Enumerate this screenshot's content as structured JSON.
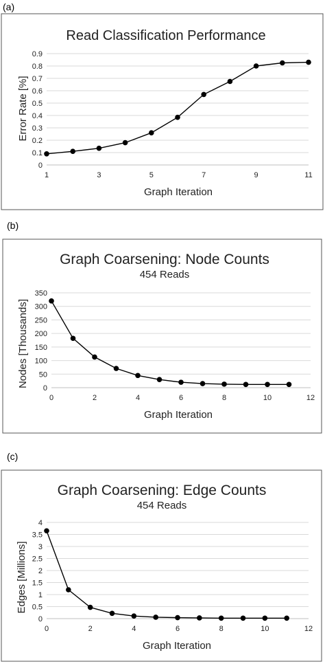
{
  "panels": [
    {
      "tag": "(a)"
    },
    {
      "tag": "(b)"
    },
    {
      "tag": "(c)"
    }
  ],
  "chart_data": [
    {
      "type": "line",
      "title": "Read Classification Performance",
      "subtitle": "",
      "xlabel": "Graph Iteration",
      "ylabel": "Error Rate [%]",
      "xlim": [
        1,
        11
      ],
      "ylim": [
        0,
        0.9
      ],
      "xticks": [
        1,
        3,
        5,
        7,
        9,
        11
      ],
      "yticks": [
        0,
        0.1,
        0.2,
        0.3,
        0.4,
        0.5,
        0.6,
        0.7,
        0.8,
        0.9
      ],
      "grid": "horizontal",
      "legend": "none",
      "series": [
        {
          "x": [
            1,
            2,
            3,
            4,
            5,
            6,
            7,
            8,
            9,
            10,
            11
          ],
          "values": [
            0.09,
            0.11,
            0.135,
            0.18,
            0.26,
            0.385,
            0.57,
            0.675,
            0.8,
            0.825,
            0.83
          ]
        }
      ]
    },
    {
      "type": "scatter",
      "title": "Graph Coarsening: Node Counts",
      "subtitle": "454 Reads",
      "xlabel": "Graph Iteration",
      "ylabel": "Nodes [Thousands]",
      "xlim": [
        0,
        12
      ],
      "ylim": [
        0,
        350
      ],
      "xticks": [
        0,
        2,
        4,
        6,
        8,
        10,
        12
      ],
      "yticks": [
        0,
        50,
        100,
        150,
        200,
        250,
        300,
        350
      ],
      "grid": "horizontal",
      "legend": "none",
      "series": [
        {
          "x": [
            0,
            1,
            2,
            3,
            4,
            5,
            6,
            7,
            8,
            9,
            10,
            11
          ],
          "values": [
            320,
            182,
            113,
            71,
            45,
            30,
            20,
            15,
            13,
            12,
            12,
            12
          ]
        }
      ]
    },
    {
      "type": "scatter",
      "title": "Graph Coarsening: Edge Counts",
      "subtitle": "454 Reads",
      "xlabel": "Graph Iteration",
      "ylabel": "Edges [Millions]",
      "xlim": [
        0,
        12
      ],
      "ylim": [
        0,
        4
      ],
      "xticks": [
        0,
        2,
        4,
        6,
        8,
        10,
        12
      ],
      "yticks": [
        0,
        0.5,
        1,
        1.5,
        2,
        2.5,
        3,
        3.5,
        4
      ],
      "grid": "horizontal",
      "legend": "none",
      "series": [
        {
          "x": [
            0,
            1,
            2,
            3,
            4,
            5,
            6,
            7,
            8,
            9,
            10,
            11
          ],
          "values": [
            3.65,
            1.2,
            0.47,
            0.22,
            0.11,
            0.06,
            0.04,
            0.03,
            0.02,
            0.02,
            0.02,
            0.02
          ]
        }
      ]
    }
  ]
}
